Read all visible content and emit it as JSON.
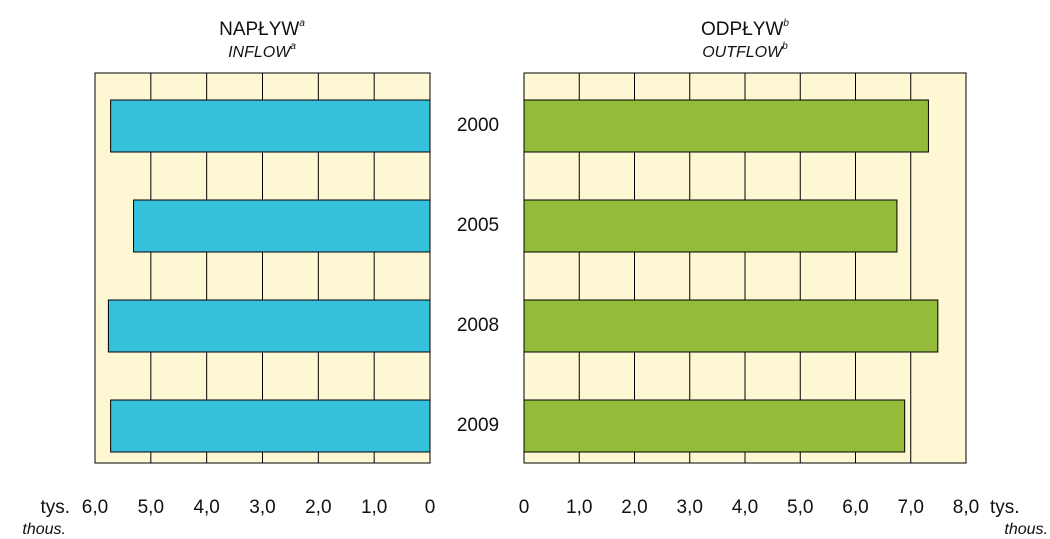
{
  "chart_data": [
    {
      "type": "bar",
      "orientation": "horizontal",
      "title": "NAPŁYW",
      "title_note": "a",
      "subtitle": "INFLOW",
      "subtitle_note": "a",
      "categories": [
        "2000",
        "2005",
        "2008",
        "2009"
      ],
      "values": [
        5.72,
        5.31,
        5.76,
        5.72
      ],
      "color": "#35c1dc",
      "xlim": [
        6,
        0
      ],
      "xticks": [
        {
          "value": 6,
          "label": "6,0"
        },
        {
          "value": 5,
          "label": "5,0"
        },
        {
          "value": 4,
          "label": "4,0"
        },
        {
          "value": 3,
          "label": "3,0"
        },
        {
          "value": 2,
          "label": "2,0"
        },
        {
          "value": 1,
          "label": "1,0"
        },
        0
      ],
      "xlabel": "tys.",
      "xlabel_en": "thous.",
      "grid": true
    },
    {
      "type": "bar",
      "orientation": "horizontal",
      "title": "ODPŁYW",
      "title_note": "b",
      "subtitle": "OUTFLOW",
      "subtitle_note": "b",
      "values": [
        7.32,
        6.75,
        7.49,
        6.89
      ],
      "color": "#95bb3a",
      "xlim": [
        0,
        8
      ],
      "xticks": [
        0,
        {
          "value": 1,
          "label": "1,0"
        },
        {
          "value": 2,
          "label": "2,0"
        },
        {
          "value": 3,
          "label": "3,0"
        },
        {
          "value": 4,
          "label": "4,0"
        },
        {
          "value": 5,
          "label": "5,0"
        },
        {
          "value": 6,
          "label": "6,0"
        },
        {
          "value": 7,
          "label": "7,0"
        },
        {
          "value": 8,
          "label": "8,0"
        }
      ],
      "xlabel": "tys.",
      "xlabel_en": "thous.",
      "grid": true
    }
  ]
}
